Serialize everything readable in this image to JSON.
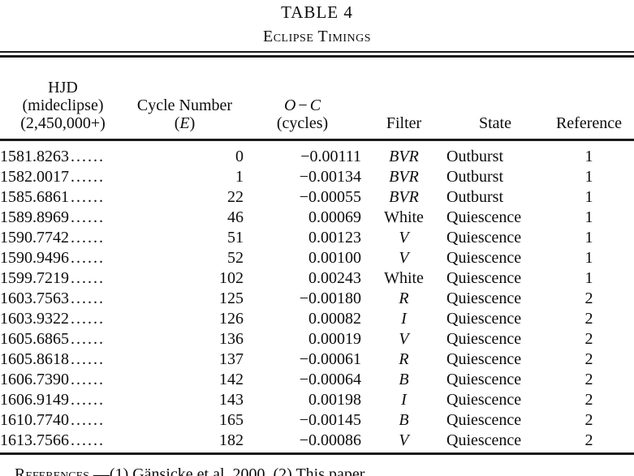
{
  "table": {
    "title": "TABLE 4",
    "subtitle": "Eclipse Timings",
    "leader_dots": "......",
    "header": {
      "col1_line1": "HJD",
      "col1_line2": "(mideclipse)",
      "col1_line3": "(2,450,000+)",
      "col2_line1": "Cycle Number",
      "col2_open": "(",
      "col2_var": "E",
      "col2_close": ")",
      "col3_var1": "O",
      "col3_minus": "−",
      "col3_var2": "C",
      "col3_line2": "(cycles)",
      "col4": "Filter",
      "col5": "State",
      "col6": "Reference"
    },
    "rows": [
      {
        "hjd": "1581.8263",
        "cycle": "0",
        "oc": "−0.00111",
        "filter": "BVR",
        "filter_class": "italic",
        "state": "Outburst",
        "ref": "1"
      },
      {
        "hjd": "1582.0017",
        "cycle": "1",
        "oc": "−0.00134",
        "filter": "BVR",
        "filter_class": "italic",
        "state": "Outburst",
        "ref": "1"
      },
      {
        "hjd": "1585.6861",
        "cycle": "22",
        "oc": "−0.00055",
        "filter": "BVR",
        "filter_class": "italic",
        "state": "Outburst",
        "ref": "1"
      },
      {
        "hjd": "1589.8969",
        "cycle": "46",
        "oc": "0.00069",
        "filter": "White",
        "filter_class": "roman",
        "state": "Quiescence",
        "ref": "1"
      },
      {
        "hjd": "1590.7742",
        "cycle": "51",
        "oc": "0.00123",
        "filter": "V",
        "filter_class": "italic",
        "state": "Quiescence",
        "ref": "1"
      },
      {
        "hjd": "1590.9496",
        "cycle": "52",
        "oc": "0.00100",
        "filter": "V",
        "filter_class": "italic",
        "state": "Quiescence",
        "ref": "1"
      },
      {
        "hjd": "1599.7219",
        "cycle": "102",
        "oc": "0.00243",
        "filter": "White",
        "filter_class": "roman",
        "state": "Quiescence",
        "ref": "1"
      },
      {
        "hjd": "1603.7563",
        "cycle": "125",
        "oc": "−0.00180",
        "filter": "R",
        "filter_class": "italic",
        "state": "Quiescence",
        "ref": "2"
      },
      {
        "hjd": "1603.9322",
        "cycle": "126",
        "oc": "0.00082",
        "filter": "I",
        "filter_class": "italic",
        "state": "Quiescence",
        "ref": "2"
      },
      {
        "hjd": "1605.6865",
        "cycle": "136",
        "oc": "0.00019",
        "filter": "V",
        "filter_class": "italic",
        "state": "Quiescence",
        "ref": "2"
      },
      {
        "hjd": "1605.8618",
        "cycle": "137",
        "oc": "−0.00061",
        "filter": "R",
        "filter_class": "italic",
        "state": "Quiescence",
        "ref": "2"
      },
      {
        "hjd": "1606.7390",
        "cycle": "142",
        "oc": "−0.00064",
        "filter": "B",
        "filter_class": "italic",
        "state": "Quiescence",
        "ref": "2"
      },
      {
        "hjd": "1606.9149",
        "cycle": "143",
        "oc": "0.00198",
        "filter": "I",
        "filter_class": "italic",
        "state": "Quiescence",
        "ref": "2"
      },
      {
        "hjd": "1610.7740",
        "cycle": "165",
        "oc": "−0.00145",
        "filter": "B",
        "filter_class": "italic",
        "state": "Quiescence",
        "ref": "2"
      },
      {
        "hjd": "1613.7566",
        "cycle": "182",
        "oc": "−0.00086",
        "filter": "V",
        "filter_class": "italic",
        "state": "Quiescence",
        "ref": "2"
      }
    ],
    "footnote": {
      "label": "References",
      "sep": ".—",
      "text": "(1) Gänsicke et al. 2000. (2) This paper."
    }
  },
  "colors": {
    "text": "#0d0d0d",
    "background": "#ffffff",
    "rule": "#1a1a1a"
  }
}
